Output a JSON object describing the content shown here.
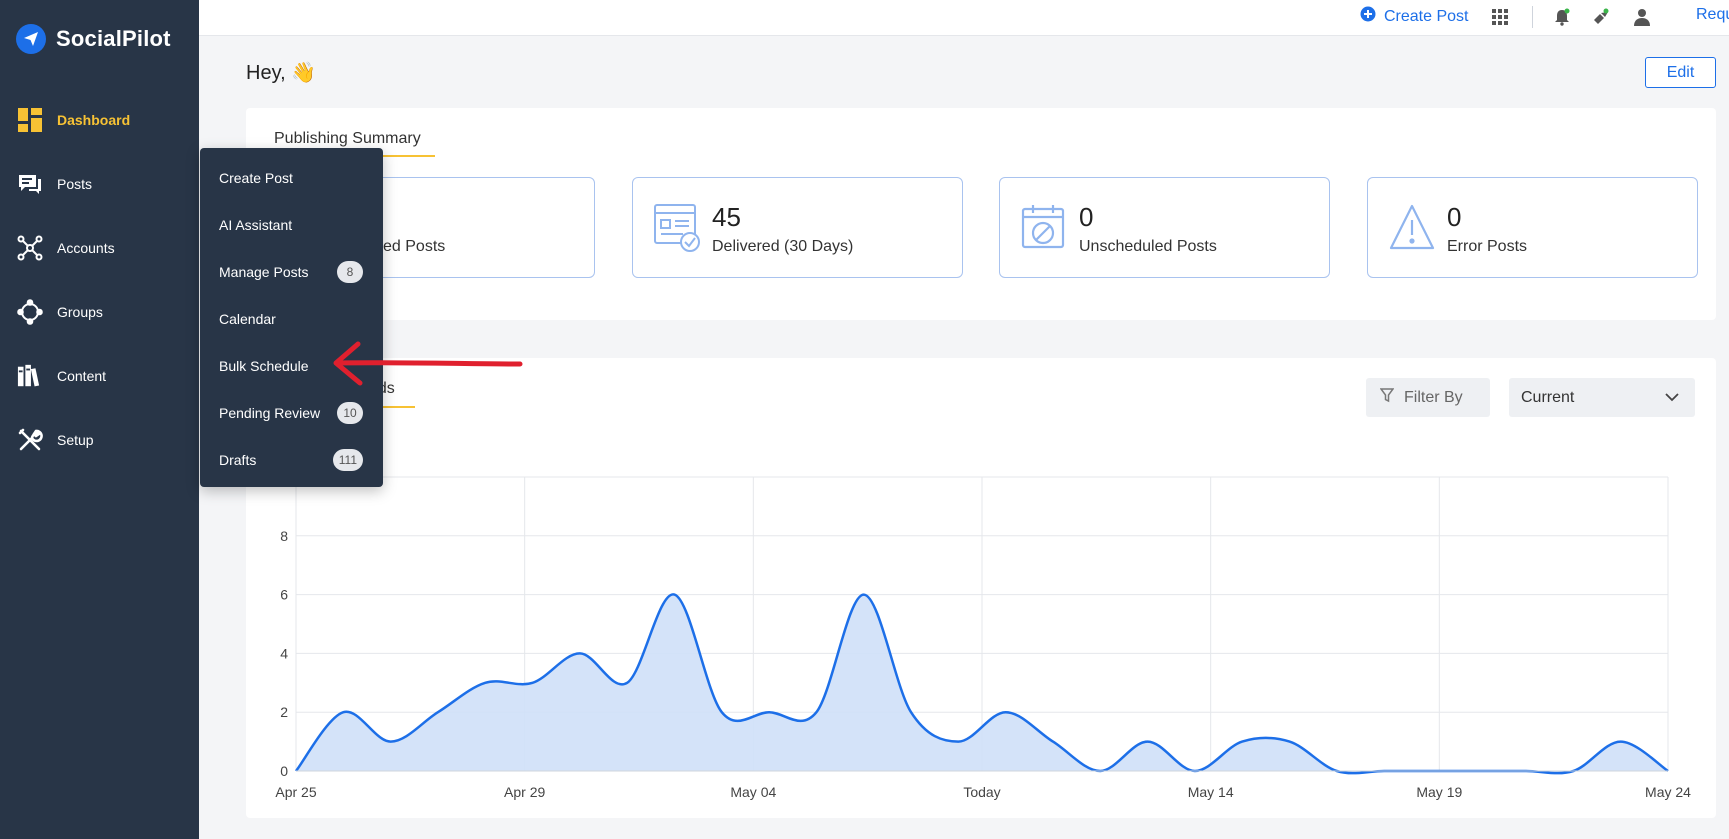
{
  "brand": {
    "name": "SocialPilot"
  },
  "sidebar": {
    "items": [
      {
        "label": "Dashboard",
        "icon": "dashboard-icon",
        "active": true
      },
      {
        "label": "Posts",
        "icon": "posts-icon"
      },
      {
        "label": "Accounts",
        "icon": "accounts-icon"
      },
      {
        "label": "Groups",
        "icon": "groups-icon"
      },
      {
        "label": "Content",
        "icon": "content-icon"
      },
      {
        "label": "Setup",
        "icon": "setup-icon"
      }
    ]
  },
  "topbar": {
    "create_post": "Create Post",
    "request": "Request"
  },
  "greeting": "Hey, 👋",
  "edit_label": "Edit",
  "publishing_summary": {
    "title": "Publishing Summary",
    "stats": [
      {
        "value": "",
        "label": "ed Posts",
        "icon": "calendar-icon"
      },
      {
        "value": "45",
        "label": "Delivered (30 Days)",
        "icon": "delivered-icon"
      },
      {
        "value": "0",
        "label": "Unscheduled Posts",
        "icon": "unscheduled-icon"
      },
      {
        "value": "0",
        "label": "Error Posts",
        "icon": "warning-icon"
      }
    ]
  },
  "trends": {
    "title_visible": "nds",
    "filter_label": "Filter By",
    "select_value": "Current"
  },
  "posts_menu": {
    "items": [
      {
        "label": "Create Post",
        "badge": ""
      },
      {
        "label": "AI Assistant",
        "badge": ""
      },
      {
        "label": "Manage Posts",
        "badge": "8"
      },
      {
        "label": "Calendar",
        "badge": ""
      },
      {
        "label": "Bulk Schedule",
        "badge": ""
      },
      {
        "label": "Pending Review",
        "badge": "10"
      },
      {
        "label": "Drafts",
        "badge": "111"
      }
    ]
  },
  "colors": {
    "sidebar": "#283547",
    "accent": "#1d6fe8",
    "highlight": "#f7c234",
    "arrow": "#e0202e",
    "area": "#cfe0f8"
  },
  "chart_data": {
    "type": "area",
    "x_tick_labels": [
      "Apr 25",
      "Apr 29",
      "May 04",
      "Today",
      "May 14",
      "May 19",
      "May 24"
    ],
    "y_ticks": [
      0,
      2,
      4,
      6,
      8
    ],
    "ylim": [
      0,
      10
    ],
    "x": [
      "Apr 25",
      "Apr 26",
      "Apr 27",
      "Apr 28",
      "Apr 29",
      "Apr 30",
      "May 01",
      "May 02",
      "May 03",
      "May 04",
      "May 05",
      "May 06",
      "May 07",
      "May 08",
      "May 09",
      "May 10",
      "May 11",
      "May 12",
      "May 13",
      "May 14",
      "May 15",
      "May 16",
      "May 17",
      "May 18",
      "May 19",
      "May 20",
      "May 21",
      "May 22",
      "May 23",
      "May 24"
    ],
    "values": [
      0,
      2,
      1,
      2,
      3,
      3,
      4,
      3,
      6,
      2,
      2,
      2,
      6,
      2,
      1,
      2,
      1,
      0,
      1,
      0,
      1,
      1,
      0,
      0,
      0,
      0,
      0,
      0,
      1,
      0
    ]
  }
}
